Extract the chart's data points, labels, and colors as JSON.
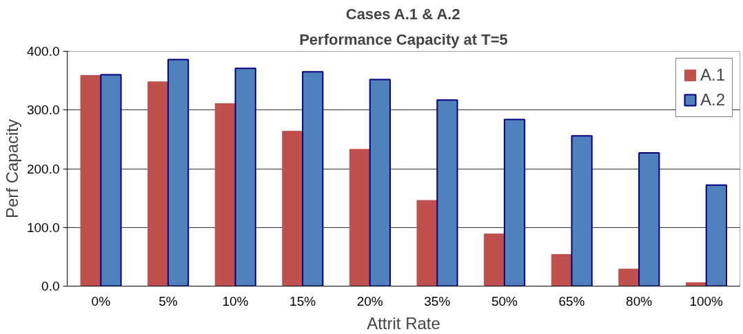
{
  "chart_data": {
    "type": "bar",
    "title": "Cases A.1 & A.2",
    "subtitle": "Performance Capacity at T=5",
    "xlabel": "Attrit Rate",
    "ylabel": "Perf Capacity",
    "categories": [
      "0%",
      "5%",
      "10%",
      "15%",
      "20%",
      "35%",
      "50%",
      "65%",
      "80%",
      "100%"
    ],
    "series": [
      {
        "name": "A.1",
        "color": "#c0504d",
        "values": [
          359,
          348,
          311,
          264,
          233,
          146,
          89,
          54,
          29,
          6
        ]
      },
      {
        "name": "A.2",
        "color": "#4f81bd",
        "values": [
          360,
          386,
          371,
          365,
          352,
          317,
          284,
          256,
          227,
          172
        ]
      }
    ],
    "ylim": [
      0,
      400
    ],
    "yticks": [
      {
        "value": 0,
        "label": "0.0"
      },
      {
        "value": 100,
        "label": "100.0"
      },
      {
        "value": 200,
        "label": "200.0"
      },
      {
        "value": 300,
        "label": "300.0"
      },
      {
        "value": 400,
        "label": "400.0"
      }
    ],
    "grid": "y",
    "legend": "top right"
  }
}
